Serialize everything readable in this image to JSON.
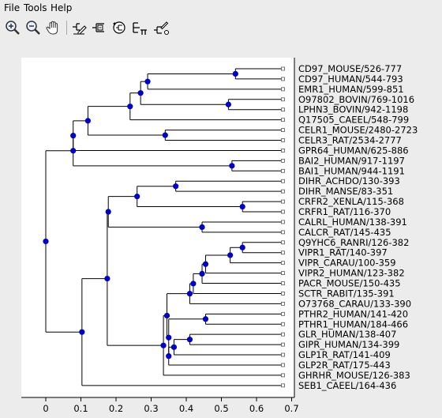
{
  "menu": [
    "File",
    "Tools",
    "Help"
  ],
  "toolbar": [
    {
      "name": "zoom-in-icon"
    },
    {
      "name": "zoom-out-icon"
    },
    {
      "name": "pan-hand-icon"
    },
    {
      "name": "edit-node-icon"
    },
    {
      "name": "collapse-node-icon"
    },
    {
      "name": "reroot-icon"
    },
    {
      "name": "cut-tree-icon"
    },
    {
      "name": "tree-settings-icon"
    }
  ],
  "colors": {
    "node": "#0000cc",
    "line": "#000000",
    "background": "#ffffff"
  },
  "chart_data": {
    "type": "dendrogram",
    "xlim": [
      -0.07,
      0.7
    ],
    "xticks": [
      "0",
      "0.1",
      "0.2",
      "0.3",
      "0.4",
      "0.5",
      "0.6",
      "0.7"
    ],
    "leaves": [
      "CD97_MOUSE/526-777",
      "CD97_HUMAN/544-793",
      "EMR1_HUMAN/599-851",
      "O97802_BOVIN/769-1016",
      "LPHN3_BOVIN/942-1198",
      "Q17505_CAEEL/548-799",
      "CELR1_MOUSE/2480-2723",
      "CELR3_RAT/2534-2777",
      "GPR64_HUMAN/625-886",
      "BAI2_HUMAN/917-1197",
      "BAI1_HUMAN/944-1191",
      "DIHR_ACHDO/130-393",
      "DIHR_MANSE/83-351",
      "CRFR2_XENLA/115-368",
      "CRFR1_RAT/116-370",
      "CALRL_HUMAN/138-391",
      "CALCR_RAT/145-435",
      "Q9YHC6_RANRI/126-382",
      "VIPR1_RAT/140-397",
      "VIPR_CARAU/100-359",
      "VIPR2_HUMAN/123-382",
      "PACR_MOUSE/150-435",
      "SCTR_RABIT/135-391",
      "O73768_CARAU/133-390",
      "PTHR2_HUMAN/141-420",
      "PTHR1_HUMAN/184-466",
      "GLR_HUMAN/138-407",
      "GIPR_HUMAN/134-399",
      "GLP1R_RAT/141-409",
      "GLP2R_RAT/175-443",
      "GHRHR_MOUSE/126-383",
      "SEB1_CAEEL/164-436"
    ],
    "tree": {
      "h": 0.0,
      "c": [
        {
          "h": 0.078,
          "c": [
            {
              "h": 0.078,
              "c": [
                {
                  "h": 0.12,
                  "c": [
                    {
                      "h": 0.24,
                      "c": [
                        {
                          "h": 0.27,
                          "c": [
                            {
                              "h": 0.29,
                              "c": [
                                {
                                  "h": 0.54,
                                  "c": [
                                    {
                                      "leaf": 0
                                    },
                                    {
                                      "leaf": 1
                                    }
                                  ]
                                },
                                {
                                  "leaf": 2
                                }
                              ]
                            },
                            {
                              "h": 0.52,
                              "c": [
                                {
                                  "leaf": 3
                                },
                                {
                                  "leaf": 4
                                }
                              ]
                            }
                          ]
                        },
                        {
                          "leaf": 5
                        }
                      ]
                    },
                    {
                      "h": 0.34,
                      "c": [
                        {
                          "leaf": 6
                        },
                        {
                          "leaf": 7
                        }
                      ]
                    }
                  ]
                },
                {
                  "leaf": 8
                }
              ]
            },
            {
              "h": 0.53,
              "c": [
                {
                  "leaf": 9
                },
                {
                  "leaf": 10
                }
              ]
            }
          ]
        },
        {
          "h": 0.103,
          "c": [
            {
              "h": 0.175,
              "c": [
                {
                  "h": 0.178,
                  "c": [
                    {
                      "h": 0.26,
                      "c": [
                        {
                          "h": 0.37,
                          "c": [
                            {
                              "leaf": 11
                            },
                            {
                              "leaf": 12
                            }
                          ]
                        },
                        {
                          "h": 0.56,
                          "c": [
                            {
                              "leaf": 13
                            },
                            {
                              "leaf": 14
                            }
                          ]
                        }
                      ]
                    },
                    {
                      "h": 0.445,
                      "c": [
                        {
                          "leaf": 15
                        },
                        {
                          "leaf": 16
                        }
                      ]
                    }
                  ]
                },
                {
                  "h": 0.335,
                  "c": [
                    {
                      "h": 0.345,
                      "c": [
                        {
                          "h": 0.41,
                          "c": [
                            {
                              "h": 0.42,
                              "c": [
                                {
                                  "h": 0.445,
                                  "c": [
                                    {
                                      "h": 0.455,
                                      "c": [
                                        {
                                          "h": 0.525,
                                          "c": [
                                            {
                                              "h": 0.56,
                                              "c": [
                                                {
                                                  "leaf": 17
                                                },
                                                {
                                                  "leaf": 18
                                                }
                                              ]
                                            },
                                            {
                                              "leaf": 19
                                            }
                                          ]
                                        },
                                        {
                                          "leaf": 20
                                        }
                                      ]
                                    },
                                    {
                                      "leaf": 21
                                    }
                                  ]
                                },
                                {
                                  "leaf": 22
                                }
                              ]
                            },
                            {
                              "leaf": 23
                            }
                          ]
                        },
                        {
                          "h": 0.35,
                          "c": [
                            {
                              "h": 0.455,
                              "c": [
                                {
                                  "leaf": 24
                                },
                                {
                                  "leaf": 25
                                }
                              ]
                            },
                            {
                              "h": 0.35,
                              "c": [
                                {
                                  "h": 0.365,
                                  "c": [
                                    {
                                      "h": 0.41,
                                      "c": [
                                        {
                                          "leaf": 26
                                        },
                                        {
                                          "leaf": 27
                                        }
                                      ]
                                    },
                                    {
                                      "leaf": 28
                                    }
                                  ]
                                },
                                {
                                  "leaf": 29
                                }
                              ]
                            }
                          ]
                        }
                      ]
                    },
                    {
                      "leaf": 30
                    }
                  ]
                }
              ]
            },
            {
              "leaf": 31
            }
          ]
        }
      ]
    }
  }
}
